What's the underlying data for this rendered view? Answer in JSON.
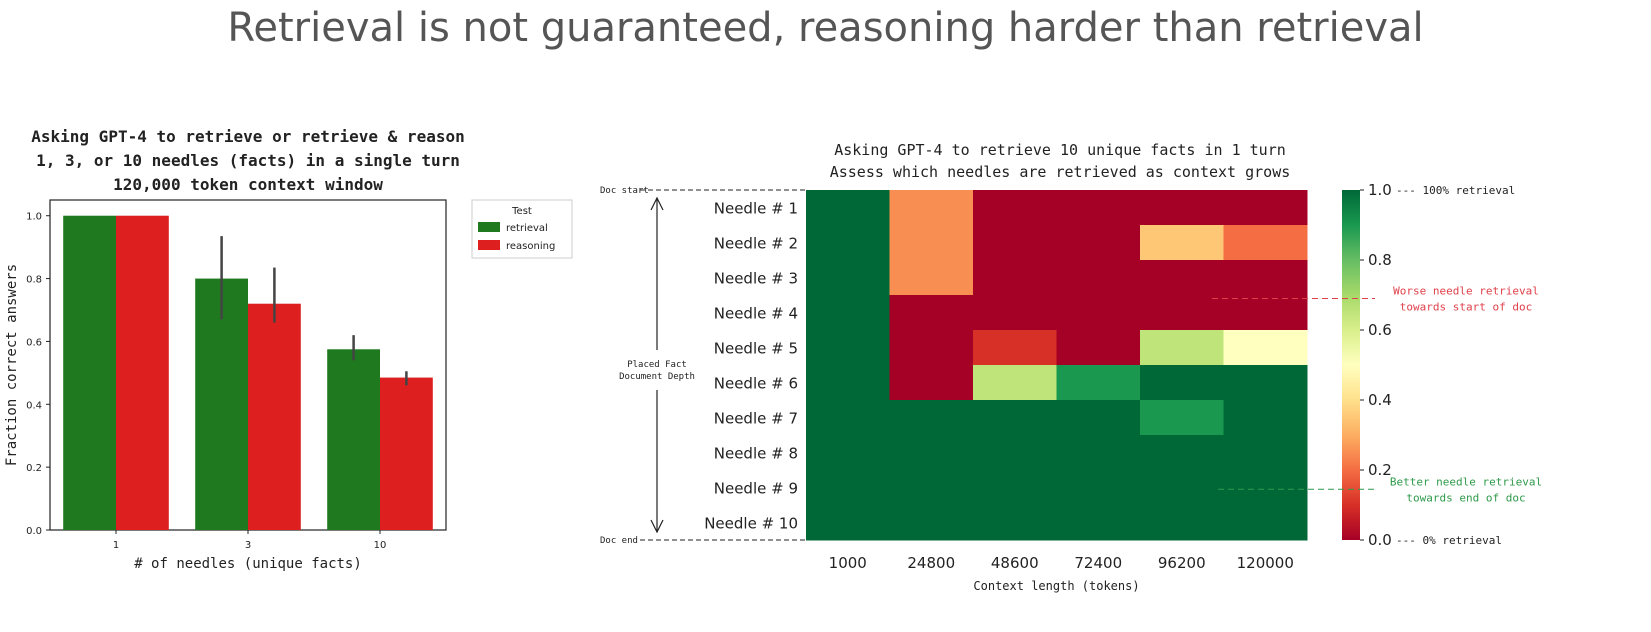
{
  "slide_title": "Retrieval is not guaranteed, reasoning harder than retrieval",
  "chart_data": [
    {
      "type": "bar",
      "title_lines": [
        "Asking GPT-4 to retrieve or retrieve & reason",
        "1, 3, or 10 needles (facts) in a single turn",
        "120,000 token context window"
      ],
      "xlabel": "# of needles (unique facts)",
      "ylabel": "Fraction correct answers",
      "categories": [
        "1",
        "3",
        "10"
      ],
      "ylim": [
        0,
        1.05
      ],
      "yticks": [
        "0.0",
        "0.2",
        "0.4",
        "0.6",
        "0.8",
        "1.0"
      ],
      "legend_title": "Test",
      "legend_position": "outside-right",
      "series": [
        {
          "name": "retrieval",
          "color": "#1f7a1f",
          "values": [
            1.0,
            0.8,
            0.575
          ],
          "err_low": [
            1.0,
            0.67,
            0.54
          ],
          "err_high": [
            1.0,
            0.935,
            0.62
          ]
        },
        {
          "name": "reasoning",
          "color": "#dd1f1f",
          "values": [
            1.0,
            0.72,
            0.485
          ],
          "err_low": [
            1.0,
            0.66,
            0.46
          ],
          "err_high": [
            1.0,
            0.835,
            0.505
          ]
        }
      ]
    },
    {
      "type": "heatmap",
      "title_lines": [
        "Asking GPT-4 to retrieve 10 unique facts in 1 turn",
        "Assess which needles are retrieved as context grows"
      ],
      "xlabel": "Context length (tokens)",
      "x_categories": [
        "1000",
        "24800",
        "48600",
        "72400",
        "96200",
        "120000"
      ],
      "y_categories": [
        "Needle # 1",
        "Needle # 2",
        "Needle # 3",
        "Needle # 4",
        "Needle # 5",
        "Needle # 6",
        "Needle # 7",
        "Needle # 8",
        "Needle # 9",
        "Needle # 10"
      ],
      "values": [
        [
          1.0,
          0.25,
          0.0,
          0.0,
          0.0,
          0.0
        ],
        [
          1.0,
          0.25,
          0.0,
          0.0,
          0.35,
          0.2
        ],
        [
          1.0,
          0.25,
          0.0,
          0.0,
          0.0,
          0.0
        ],
        [
          1.0,
          0.0,
          0.0,
          0.0,
          0.0,
          0.0
        ],
        [
          1.0,
          0.0,
          0.1,
          0.0,
          0.65,
          0.5
        ],
        [
          1.0,
          0.0,
          0.65,
          0.9,
          1.0,
          1.0
        ],
        [
          1.0,
          1.0,
          1.0,
          1.0,
          0.9,
          1.0
        ],
        [
          1.0,
          1.0,
          1.0,
          1.0,
          1.0,
          1.0
        ],
        [
          1.0,
          1.0,
          1.0,
          1.0,
          1.0,
          1.0
        ],
        [
          1.0,
          1.0,
          1.0,
          1.0,
          1.0,
          1.0
        ]
      ],
      "colorbar_ticks": [
        "0.0",
        "0.2",
        "0.4",
        "0.6",
        "0.8",
        "1.0"
      ],
      "colormap": "RdYlGn",
      "annotations": {
        "doc_start": "Doc start",
        "doc_end": "Doc end",
        "depth_label_lines": [
          "Placed Fact",
          "Document Depth"
        ],
        "top_retrieval": "--- 100% retrieval",
        "bottom_retrieval": "--- 0% retrieval",
        "worse_lines": [
          "Worse needle retrieval",
          "towards start of doc"
        ],
        "better_lines": [
          "Better needle retrieval",
          "towards end of doc"
        ],
        "worse_color": "#e0404a",
        "better_color": "#2e9a4a"
      }
    }
  ]
}
